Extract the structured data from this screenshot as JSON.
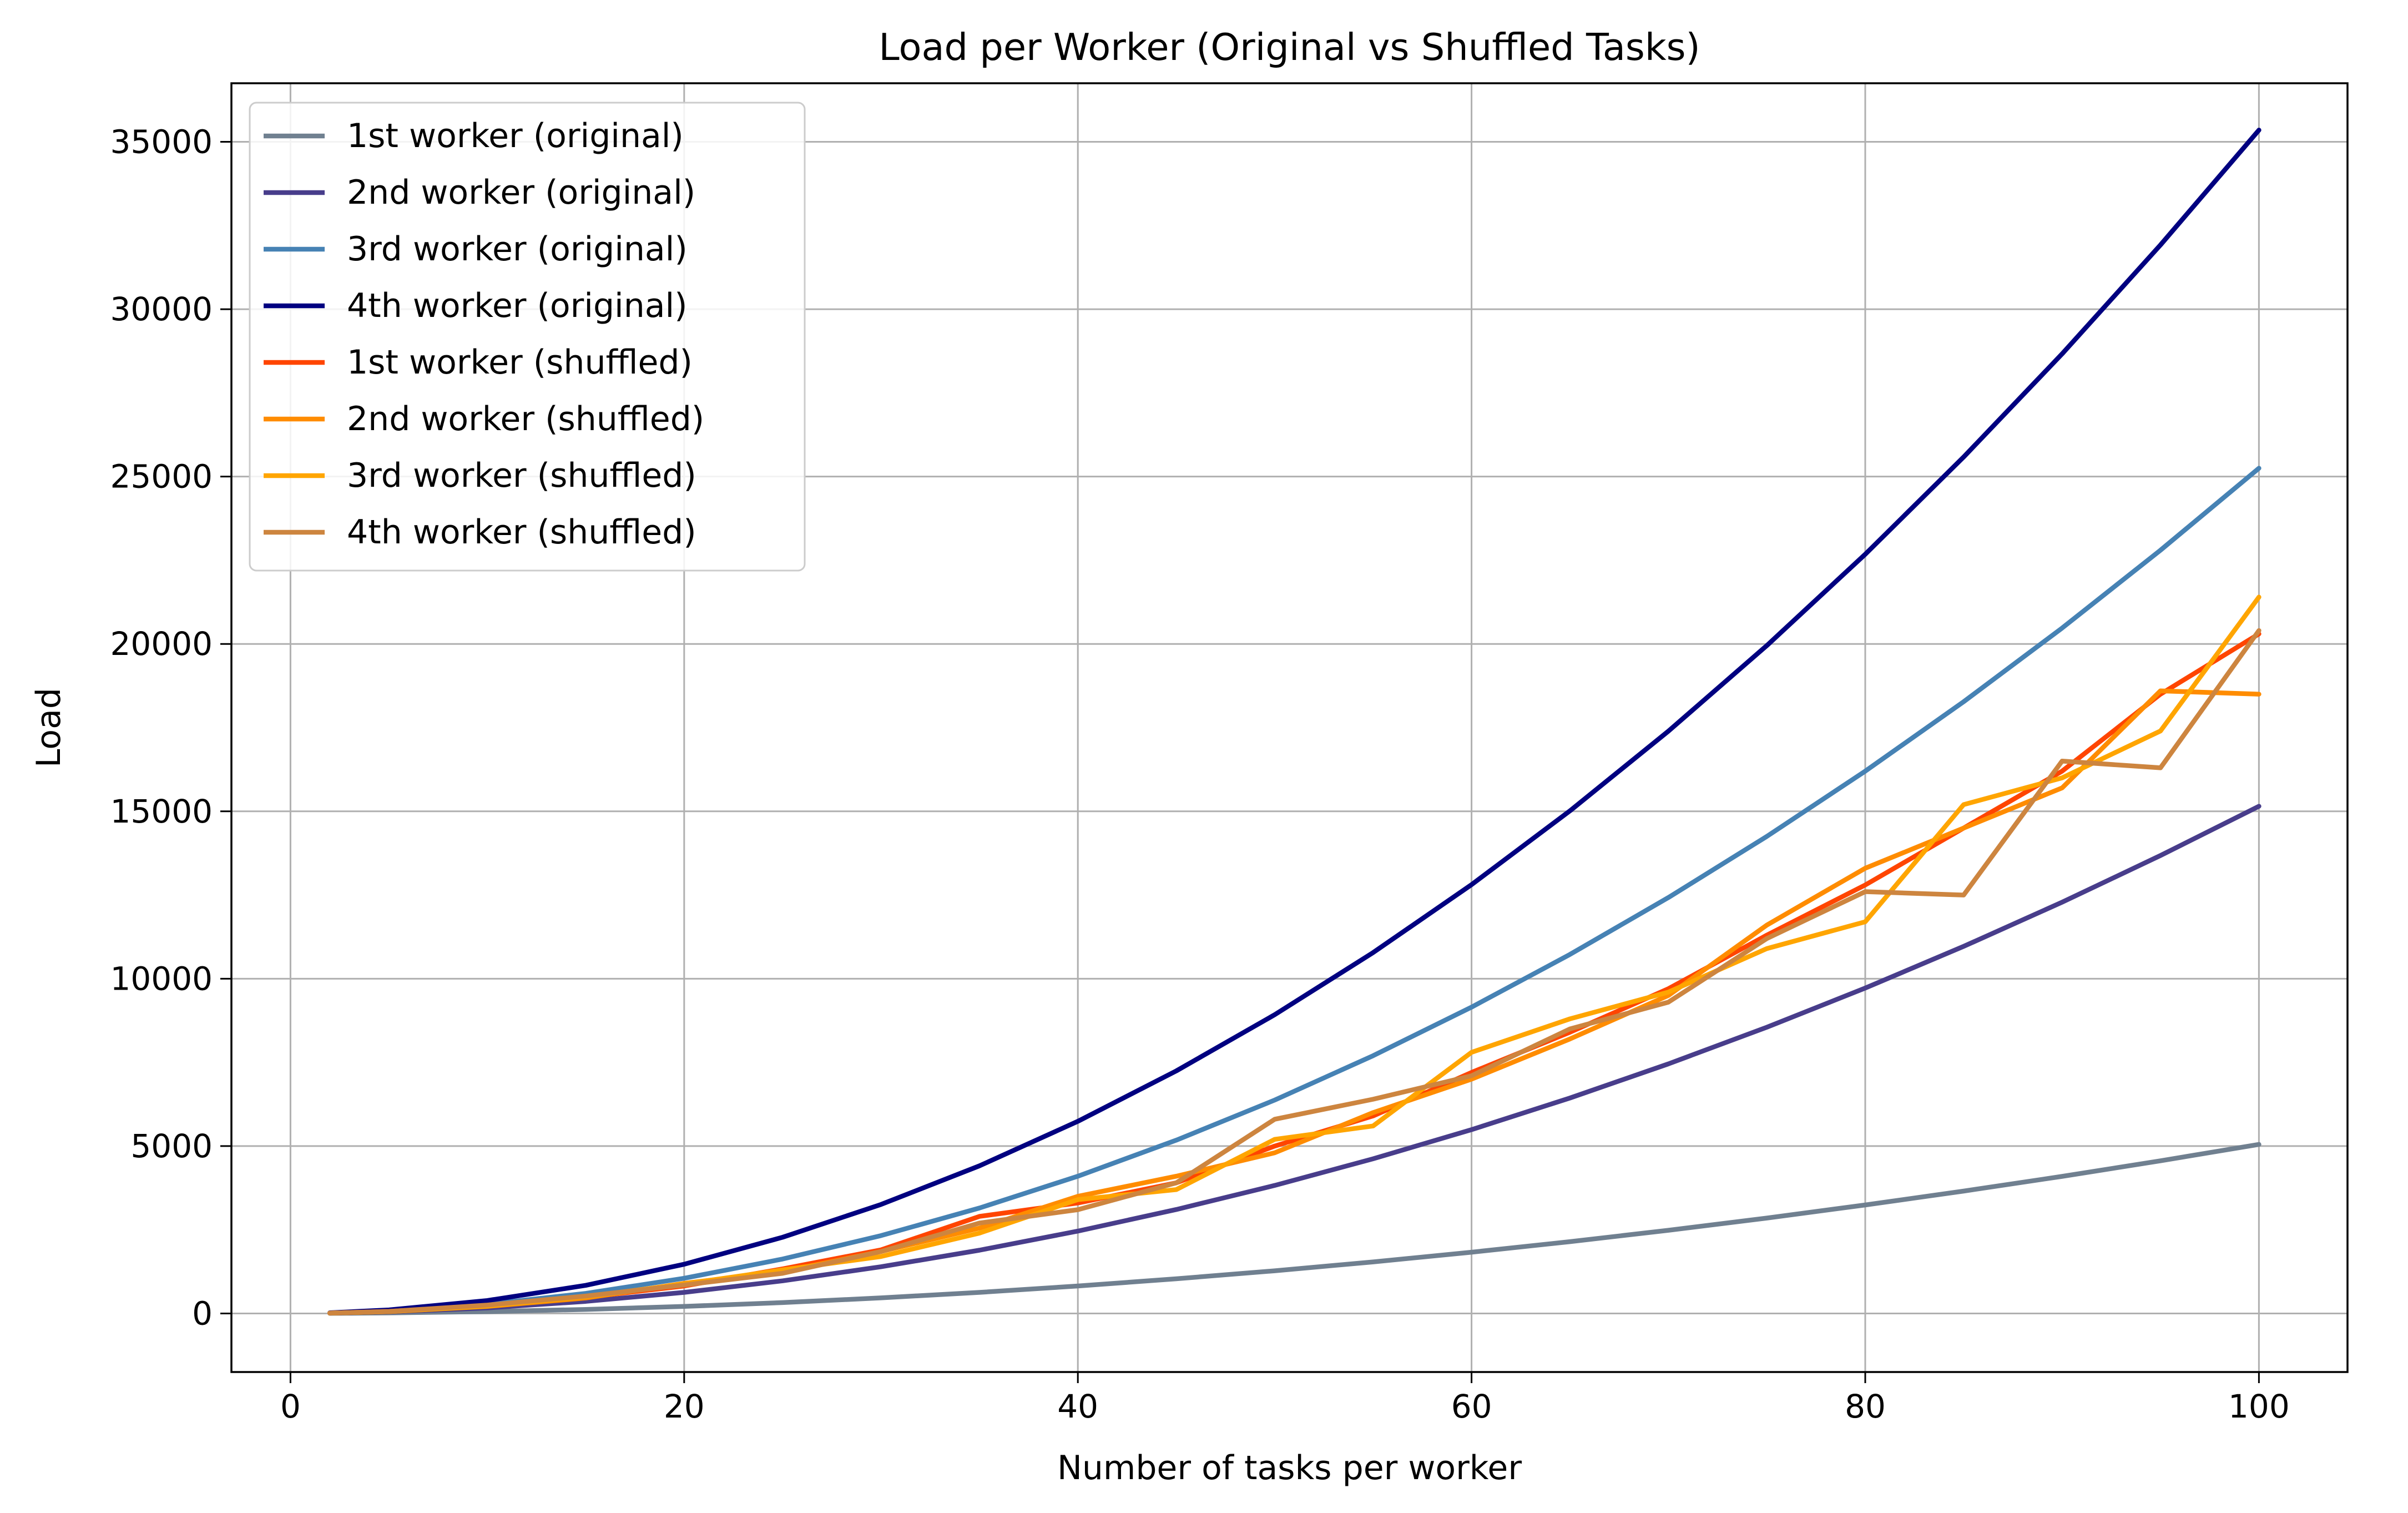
{
  "chart_data": {
    "type": "line",
    "title": "Load per Worker (Original vs Shuffled Tasks)",
    "xlabel": "Number of tasks per worker",
    "ylabel": "Load",
    "xlim": [
      -3,
      104.5
    ],
    "ylim": [
      -1750,
      36750
    ],
    "xticks": [
      0,
      20,
      40,
      60,
      80,
      100
    ],
    "yticks": [
      0,
      5000,
      10000,
      15000,
      20000,
      25000,
      30000,
      35000
    ],
    "grid": true,
    "legend_position": "top-left",
    "x": [
      2,
      5,
      10,
      15,
      20,
      25,
      30,
      35,
      40,
      45,
      50,
      55,
      60,
      65,
      70,
      75,
      80,
      85,
      90,
      95,
      100
    ],
    "series": [
      {
        "name": "1st worker (original)",
        "color": "#708090",
        "values": [
          3,
          15,
          55,
          120,
          210,
          325,
          465,
          630,
          820,
          1035,
          1275,
          1540,
          1830,
          2145,
          2485,
          2850,
          3240,
          3655,
          4095,
          4560,
          5050
        ]
      },
      {
        "name": "2nd worker (original)",
        "color": "#483d8b",
        "values": [
          9,
          45,
          165,
          360,
          630,
          975,
          1395,
          1890,
          2460,
          3105,
          3825,
          4620,
          5490,
          6435,
          7455,
          8550,
          9720,
          10965,
          12285,
          13680,
          15150
        ]
      },
      {
        "name": "3rd worker (original)",
        "color": "#4682b4",
        "values": [
          15,
          75,
          275,
          600,
          1050,
          1625,
          2325,
          3150,
          4100,
          5175,
          6375,
          7700,
          9150,
          10725,
          12425,
          14250,
          16200,
          18275,
          20475,
          22800,
          25250
        ]
      },
      {
        "name": "4th worker (original)",
        "color": "#000080",
        "values": [
          21,
          105,
          385,
          840,
          1470,
          2275,
          3255,
          4410,
          5740,
          7245,
          8925,
          10780,
          12810,
          15015,
          17395,
          19950,
          22680,
          25585,
          28665,
          31920,
          35350
        ]
      },
      {
        "name": "1st worker (shuffled)",
        "color": "#ff4500",
        "values": [
          10,
          60,
          230,
          480,
          820,
          1330,
          1900,
          2900,
          3300,
          3900,
          5000,
          5900,
          7200,
          8400,
          9700,
          11300,
          12800,
          14500,
          16200,
          18500,
          20300
        ]
      },
      {
        "name": "2nd worker (shuffled)",
        "color": "#ff8c00",
        "values": [
          12,
          55,
          210,
          460,
          900,
          1250,
          1850,
          2550,
          3500,
          4100,
          4800,
          6000,
          7000,
          8200,
          9500,
          11600,
          13300,
          14500,
          15700,
          18600,
          18500
        ]
      },
      {
        "name": "3rd worker (shuffled)",
        "color": "#ffa500",
        "values": [
          10,
          55,
          220,
          500,
          880,
          1300,
          1700,
          2400,
          3400,
          3700,
          5200,
          5600,
          7800,
          8800,
          9600,
          10900,
          11700,
          15200,
          16000,
          17400,
          21400
        ]
      },
      {
        "name": "4th worker (shuffled)",
        "color": "#cd853f",
        "values": [
          12,
          60,
          250,
          520,
          850,
          1200,
          1850,
          2700,
          3100,
          3900,
          5800,
          6400,
          7100,
          8500,
          9300,
          11200,
          12600,
          12500,
          16500,
          16300,
          20400
        ]
      }
    ]
  }
}
